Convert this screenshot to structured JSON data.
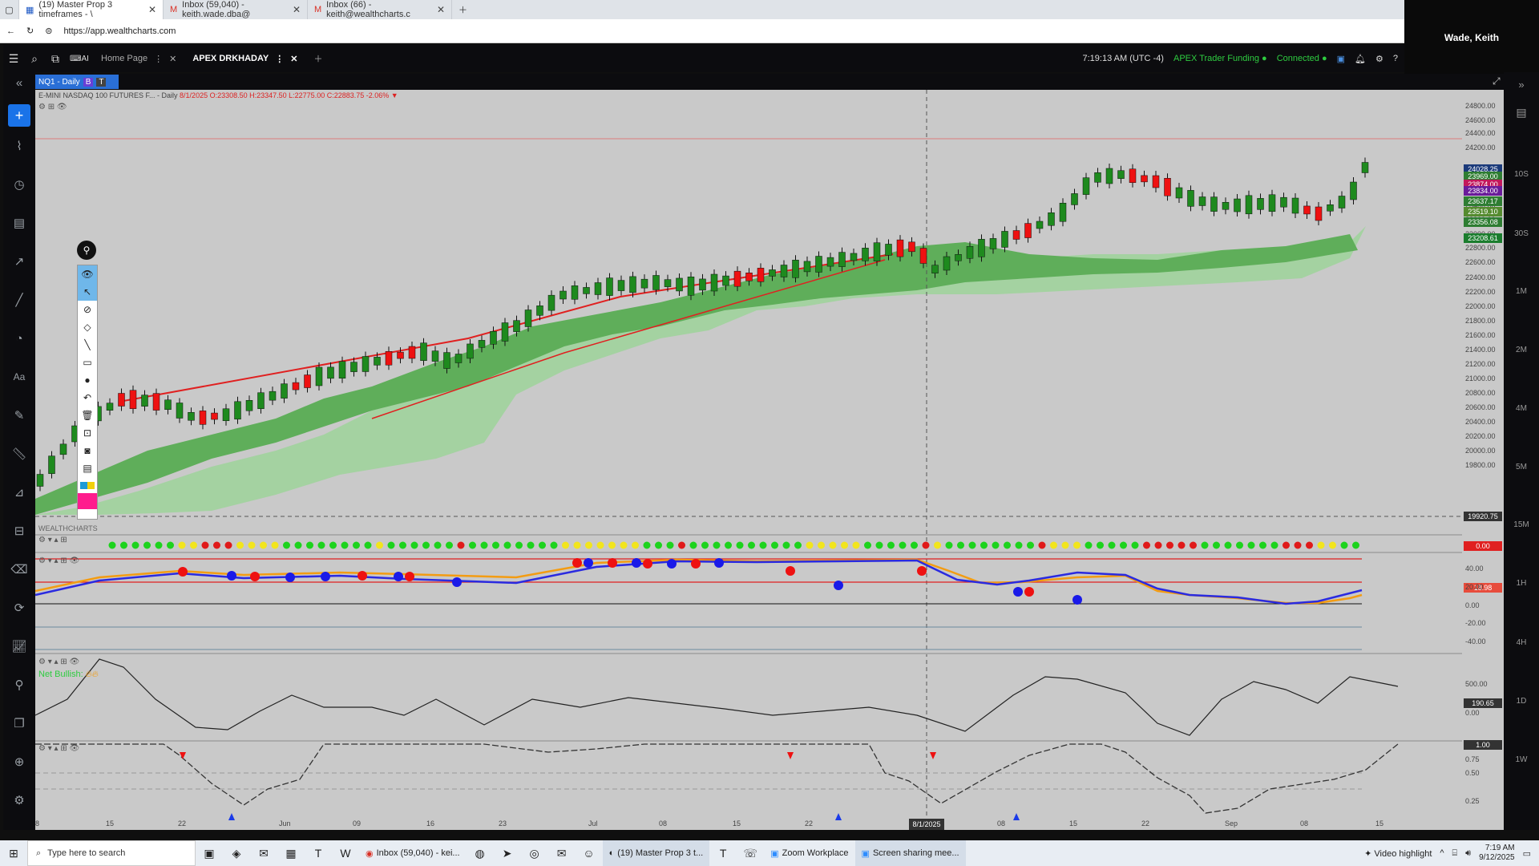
{
  "browser": {
    "tabs": [
      {
        "label": "(19) Master Prop 3 timeframes - \\"
      },
      {
        "label": "Inbox (59,040) - keith.wade.dba@"
      },
      {
        "label": "Inbox (66) - keith@wealthcharts.c"
      }
    ],
    "url": "https://app.wealthcharts.com",
    "user": "Wade, Keith"
  },
  "app": {
    "tabs": [
      {
        "label": "Home Page"
      },
      {
        "label": "APEX DRKHADAY"
      }
    ],
    "time": "7:19:13 AM",
    "tz": "(UTC -4)",
    "account": "APEX Trader Funding",
    "status": "Connected",
    "ai_label": "AI"
  },
  "chart": {
    "symbol_tag": "NQ1 - Daily",
    "tag_b": "B",
    "tag_t": "T",
    "legend_name": "E-MINI NASDAQ 100 FUTURES F... - Daily",
    "legend_ohlc": "8/1/2025 O:23308.50 H:23347.50 L:22775.00 C:22883.75 -2.06%",
    "watermark": "WEALTHCHARTS",
    "net_bullish": "Net Bullish:",
    "crosshair_price": "19920.75",
    "crosshair_date": "8/1/2025",
    "price_axis": [
      "24800.00",
      "24600.00",
      "24400.00",
      "24200.00",
      "23800.00",
      "23600.00",
      "23400.00",
      "23200.00",
      "23000.00",
      "22800.00",
      "22600.00",
      "22400.00",
      "22200.00",
      "22000.00",
      "21800.00",
      "21600.00",
      "21400.00",
      "21200.00",
      "21000.00",
      "20800.00",
      "20600.00",
      "20400.00",
      "20200.00",
      "20000.00",
      "19800.00"
    ],
    "price_labels": [
      {
        "text": "24028.25",
        "color": "#1b3a7a"
      },
      {
        "text": "23969.00",
        "color": "#2e7d32"
      },
      {
        "text": "23874.00",
        "color": "#c2185b"
      },
      {
        "text": "23834.00",
        "color": "#6a1b9a"
      },
      {
        "text": "23637.17",
        "color": "#2e7d32"
      },
      {
        "text": "23519.10",
        "color": "#558b2f"
      },
      {
        "text": "23356.08",
        "color": "#2e7d32"
      },
      {
        "text": "23208.61",
        "color": "#1b7d2e"
      }
    ],
    "dots_value": "0.00",
    "osc_axis": [
      "40.00",
      "20.00",
      "0.00",
      "-20.00",
      "-40.00"
    ],
    "osc_value": "18.98",
    "net_axis": [
      "500.00",
      "0.00"
    ],
    "net_value": "190.65",
    "bottom_axis": [
      "0.75",
      "0.50",
      "0.25"
    ],
    "bottom_value": "1.00",
    "x_labels": [
      "8",
      "15",
      "22",
      "Jun",
      "09",
      "16",
      "23",
      "Jul",
      "08",
      "15",
      "22",
      "8/1/2025",
      "08",
      "15",
      "22",
      "Sep",
      "08",
      "15"
    ],
    "timeframes": [
      "10S",
      "30S",
      "1M",
      "2M",
      "4M",
      "5M",
      "15M",
      "1H",
      "4H",
      "1D",
      "1W"
    ]
  },
  "taskbar": {
    "search_placeholder": "Type here to search",
    "apps": [
      {
        "label": "Inbox (59,040) - kei..."
      },
      {
        "label": "(19) Master Prop 3 t..."
      },
      {
        "label": "Zoom Workplace"
      },
      {
        "label": "Screen sharing mee..."
      }
    ],
    "video_highlight": "Video highlight",
    "clock_time": "7:19 AM",
    "clock_date": "9/12/2025"
  }
}
